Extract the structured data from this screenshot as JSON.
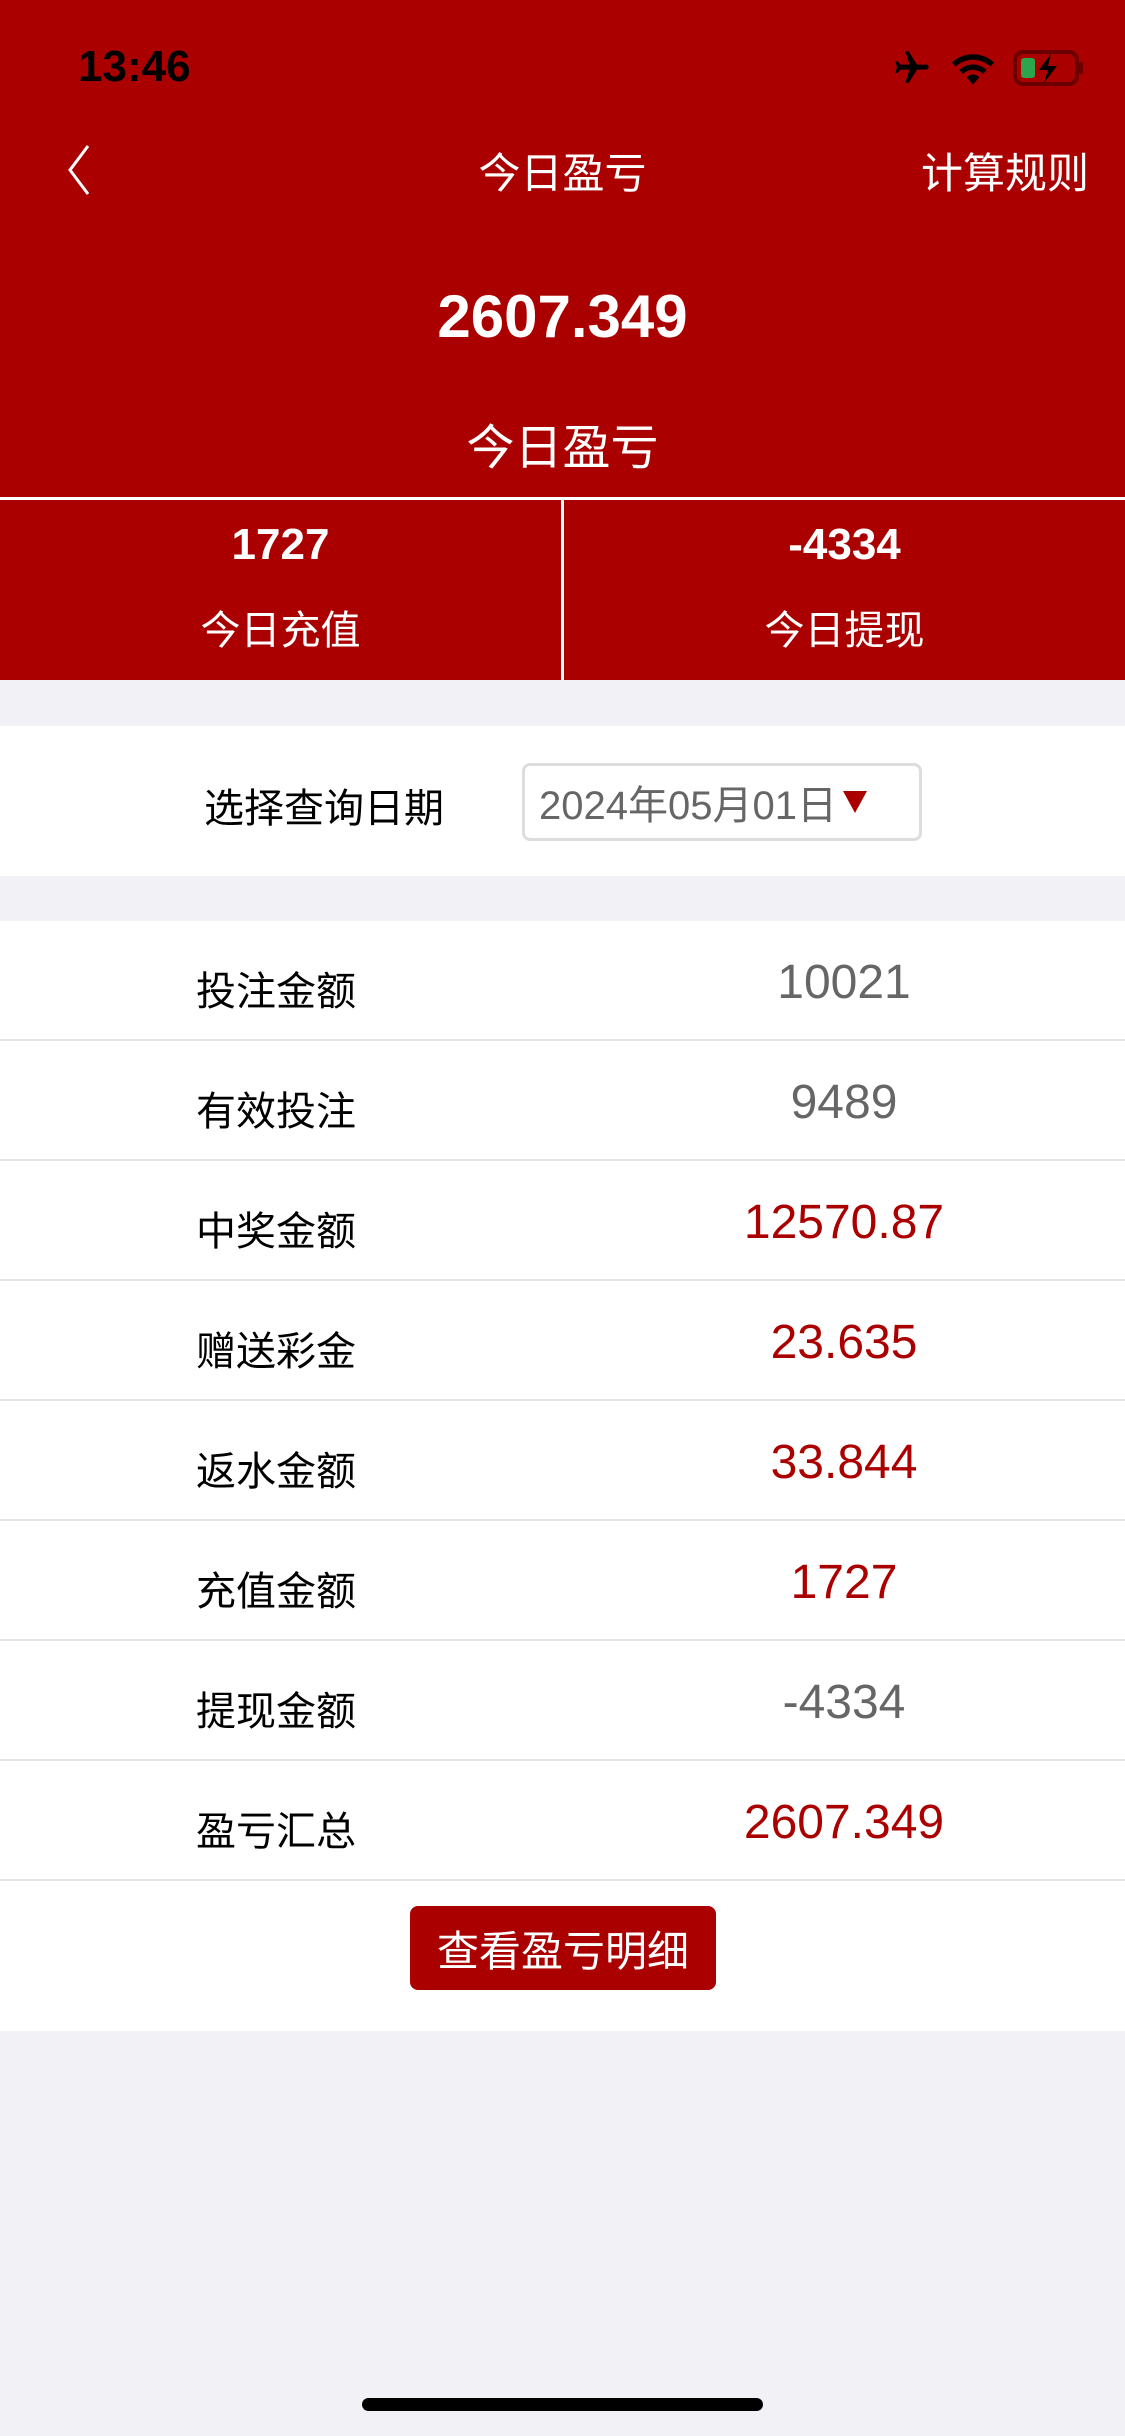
{
  "status_bar": {
    "time": "13:46",
    "icons": [
      "airplane-icon",
      "wifi-icon",
      "battery-charging-icon"
    ]
  },
  "nav": {
    "title": "今日盈亏",
    "rules": "计算规则",
    "back_icon": "chevron-left-icon"
  },
  "summary": {
    "value": "2607.349",
    "label": "今日盈亏"
  },
  "stats": [
    {
      "value": "1727",
      "label": "今日充值"
    },
    {
      "value": "-4334",
      "label": "今日提现"
    }
  ],
  "date_filter": {
    "label": "选择查询日期",
    "value": "2024年05月01日"
  },
  "rows": [
    {
      "label": "投注金额",
      "value": "10021",
      "color": "#666666"
    },
    {
      "label": "有效投注",
      "value": "9489",
      "color": "#666666"
    },
    {
      "label": "中奖金额",
      "value": "12570.87",
      "color": "#ab0000"
    },
    {
      "label": "赠送彩金",
      "value": "23.635",
      "color": "#ab0000"
    },
    {
      "label": "返水金额",
      "value": "33.844",
      "color": "#ab0000"
    },
    {
      "label": "充值金额",
      "value": "1727",
      "color": "#ab0000"
    },
    {
      "label": "提现金额",
      "value": "-4334",
      "color": "#666666"
    },
    {
      "label": "盈亏汇总",
      "value": "2607.349",
      "color": "#ab0000"
    }
  ],
  "detail_button": "查看盈亏明细",
  "colors": {
    "brand": "#ab0000",
    "background": "#f1f1f6"
  }
}
